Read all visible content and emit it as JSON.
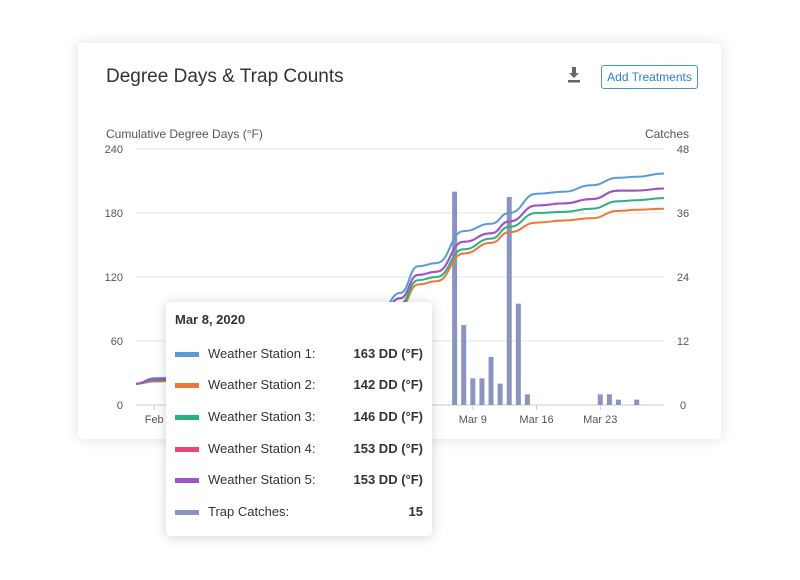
{
  "card": {
    "title": "Degree Days & Trap Counts",
    "add_button_label": "Add Treatments",
    "download_icon": "download-icon"
  },
  "chart_data": {
    "type": "line",
    "left_axis": {
      "label": "Cumulative Degree Days (°F)",
      "ticks": [
        0,
        60,
        120,
        180,
        240
      ],
      "range": [
        0,
        240
      ]
    },
    "right_axis": {
      "label": "Catches",
      "ticks": [
        0,
        12,
        24,
        36,
        48
      ],
      "range": [
        0,
        48
      ]
    },
    "x_axis": {
      "start": "2020-02-01",
      "end": "2020-03-30",
      "tick_labels": [
        "Feb",
        "Mar 9",
        "Mar 16",
        "Mar 23"
      ]
    },
    "grid": true,
    "line_series": [
      {
        "name": "Weather Station 1",
        "color": "#5b9bd5",
        "points": [
          [
            "2020-02-01",
            20
          ],
          [
            "2020-02-03",
            25
          ],
          [
            "2020-02-06",
            26
          ],
          [
            "2020-02-10",
            27
          ],
          [
            "2020-02-15",
            29
          ],
          [
            "2020-02-20",
            34
          ],
          [
            "2020-02-25",
            60
          ],
          [
            "2020-02-28",
            90
          ],
          [
            "2020-03-01",
            105
          ],
          [
            "2020-03-03",
            130
          ],
          [
            "2020-03-05",
            133
          ],
          [
            "2020-03-08",
            163
          ],
          [
            "2020-03-11",
            170
          ],
          [
            "2020-03-13",
            180
          ],
          [
            "2020-03-16",
            198
          ],
          [
            "2020-03-19",
            200
          ],
          [
            "2020-03-22",
            206
          ],
          [
            "2020-03-25",
            213
          ],
          [
            "2020-03-27",
            214
          ],
          [
            "2020-03-30",
            217
          ]
        ]
      },
      {
        "name": "Weather Station 2",
        "color": "#e8793a",
        "points": [
          [
            "2020-02-01",
            20
          ],
          [
            "2020-02-03",
            22
          ],
          [
            "2020-02-06",
            23
          ],
          [
            "2020-02-10",
            24
          ],
          [
            "2020-02-15",
            26
          ],
          [
            "2020-02-20",
            30
          ],
          [
            "2020-02-25",
            52
          ],
          [
            "2020-02-28",
            80
          ],
          [
            "2020-03-01",
            92
          ],
          [
            "2020-03-03",
            113
          ],
          [
            "2020-03-05",
            116
          ],
          [
            "2020-03-08",
            142
          ],
          [
            "2020-03-11",
            152
          ],
          [
            "2020-03-13",
            162
          ],
          [
            "2020-03-16",
            171
          ],
          [
            "2020-03-19",
            173
          ],
          [
            "2020-03-22",
            175
          ],
          [
            "2020-03-25",
            182
          ],
          [
            "2020-03-27",
            183
          ],
          [
            "2020-03-30",
            184
          ]
        ]
      },
      {
        "name": "Weather Station 3",
        "color": "#2bb07f",
        "points": [
          [
            "2020-02-01",
            20
          ],
          [
            "2020-02-03",
            23
          ],
          [
            "2020-02-06",
            24
          ],
          [
            "2020-02-10",
            25
          ],
          [
            "2020-02-15",
            27
          ],
          [
            "2020-02-20",
            31
          ],
          [
            "2020-02-25",
            54
          ],
          [
            "2020-02-28",
            83
          ],
          [
            "2020-03-01",
            95
          ],
          [
            "2020-03-03",
            117
          ],
          [
            "2020-03-05",
            120
          ],
          [
            "2020-03-08",
            146
          ],
          [
            "2020-03-11",
            156
          ],
          [
            "2020-03-13",
            167
          ],
          [
            "2020-03-16",
            180
          ],
          [
            "2020-03-19",
            181
          ],
          [
            "2020-03-22",
            184
          ],
          [
            "2020-03-25",
            191
          ],
          [
            "2020-03-27",
            192
          ],
          [
            "2020-03-30",
            194
          ]
        ]
      },
      {
        "name": "Weather Station 4",
        "color": "#e8457a",
        "points": [
          [
            "2020-02-01",
            20
          ],
          [
            "2020-02-03",
            24
          ],
          [
            "2020-02-06",
            25
          ],
          [
            "2020-02-10",
            26
          ],
          [
            "2020-02-15",
            28
          ],
          [
            "2020-02-20",
            32
          ],
          [
            "2020-02-25",
            57
          ],
          [
            "2020-02-28",
            86
          ],
          [
            "2020-03-01",
            100
          ],
          [
            "2020-03-03",
            122
          ],
          [
            "2020-03-05",
            125
          ],
          [
            "2020-03-08",
            153
          ],
          [
            "2020-03-11",
            161
          ],
          [
            "2020-03-13",
            172
          ],
          [
            "2020-03-16",
            187
          ],
          [
            "2020-03-19",
            189
          ],
          [
            "2020-03-22",
            193
          ],
          [
            "2020-03-25",
            201
          ],
          [
            "2020-03-27",
            201
          ],
          [
            "2020-03-30",
            203
          ]
        ]
      },
      {
        "name": "Weather Station 5",
        "color": "#9b55c9",
        "points": [
          [
            "2020-02-01",
            20
          ],
          [
            "2020-02-03",
            24
          ],
          [
            "2020-02-06",
            25
          ],
          [
            "2020-02-10",
            26
          ],
          [
            "2020-02-15",
            28
          ],
          [
            "2020-02-20",
            32
          ],
          [
            "2020-02-25",
            57
          ],
          [
            "2020-02-28",
            86
          ],
          [
            "2020-03-01",
            100
          ],
          [
            "2020-03-03",
            122
          ],
          [
            "2020-03-05",
            125
          ],
          [
            "2020-03-08",
            153
          ],
          [
            "2020-03-11",
            161
          ],
          [
            "2020-03-13",
            172
          ],
          [
            "2020-03-16",
            187
          ],
          [
            "2020-03-19",
            189
          ],
          [
            "2020-03-22",
            193
          ],
          [
            "2020-03-25",
            201
          ],
          [
            "2020-03-27",
            201
          ],
          [
            "2020-03-30",
            203
          ]
        ]
      }
    ],
    "bar_series": {
      "name": "Trap Catches",
      "color": "#8a94c1",
      "points": [
        [
          "2020-03-07",
          40
        ],
        [
          "2020-03-08",
          15
        ],
        [
          "2020-03-09",
          5
        ],
        [
          "2020-03-10",
          5
        ],
        [
          "2020-03-11",
          9
        ],
        [
          "2020-03-12",
          4
        ],
        [
          "2020-03-13",
          39
        ],
        [
          "2020-03-14",
          19
        ],
        [
          "2020-03-15",
          2
        ],
        [
          "2020-03-23",
          2
        ],
        [
          "2020-03-24",
          2
        ],
        [
          "2020-03-25",
          1
        ],
        [
          "2020-03-27",
          1
        ]
      ]
    }
  },
  "tooltip": {
    "date": "Mar 8, 2020",
    "rows": [
      {
        "label": "Weather Station 1:",
        "value": "163 DD (°F)",
        "color": "#5b9bd5"
      },
      {
        "label": "Weather Station 2:",
        "value": "142 DD (°F)",
        "color": "#e8793a"
      },
      {
        "label": "Weather Station 3:",
        "value": "146 DD (°F)",
        "color": "#2bb07f"
      },
      {
        "label": "Weather Station 4:",
        "value": "153 DD (°F)",
        "color": "#e8457a"
      },
      {
        "label": "Weather Station 5:",
        "value": "153 DD (°F)",
        "color": "#9b55c9"
      },
      {
        "label": "Trap Catches:",
        "value": "15",
        "color": "#8a94c1"
      }
    ]
  }
}
